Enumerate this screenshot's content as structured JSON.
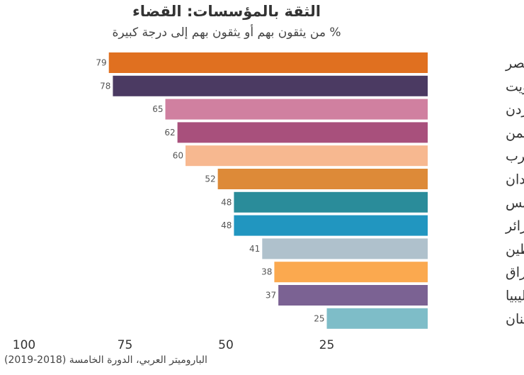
{
  "chart_data": {
    "type": "bar",
    "orientation": "horizontal",
    "title": "الثقة بالمؤسسات: القضاء",
    "subtitle": "% من يثقون بهم أو يثقون بهم  إلى درجة كبيرة",
    "source": "الباروميتر العربي، الدورة الخامسة (2018-2019)",
    "categories": [
      "مصر",
      "الكويت",
      "الأردن",
      "اليمن",
      "المغرب",
      "السودان",
      "تونس",
      "الجزائر",
      "فلسطين",
      "العراق",
      "ليبيا",
      "لبنان"
    ],
    "values": [
      79,
      78,
      65,
      62,
      60,
      52,
      48,
      48,
      41,
      38,
      37,
      25
    ],
    "colors": [
      "#e07020",
      "#4b3a62",
      "#d080a0",
      "#a8507c",
      "#f7b890",
      "#dd8a38",
      "#2a8c9a",
      "#2196c0",
      "#afc1cc",
      "#fba94f",
      "#7b6293",
      "#7ebdc8"
    ],
    "x_ticks": [
      100,
      75,
      50,
      25
    ],
    "xlim": [
      0,
      100
    ],
    "x_reversed": true,
    "legend": "none",
    "grid": false
  }
}
